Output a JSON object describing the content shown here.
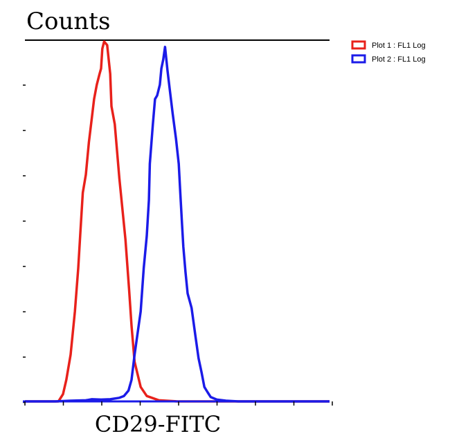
{
  "chart_data": {
    "type": "line",
    "title": "Counts",
    "xlabel": "CD29-FITC",
    "ylabel": "",
    "xlim": [
      0,
      100
    ],
    "ylim": [
      0,
      100
    ],
    "grid": false,
    "legend_position": "top-right",
    "x_tick_count": 9,
    "y_tick_count": 8,
    "series": [
      {
        "name": "Plot 1 : FL1 Log",
        "color": "#e8211b",
        "x": [
          0,
          11,
          12.5,
          13.6,
          15,
          16.4,
          17.5,
          18.2,
          19,
          20,
          21,
          22,
          22.7,
          23.6,
          24.5,
          25,
          25.4,
          26,
          27,
          28,
          28.4,
          29.5,
          31,
          33,
          34.2,
          35,
          36,
          38,
          40,
          44,
          50,
          55,
          60,
          100
        ],
        "y": [
          0,
          0,
          2,
          6,
          13,
          25,
          37,
          47,
          58,
          63,
          72,
          79,
          84,
          88,
          91,
          92.5,
          98,
          100,
          99,
          91,
          82,
          77,
          62,
          45,
          31,
          21,
          11,
          4,
          1.5,
          0.3,
          0,
          0,
          0,
          0
        ]
      },
      {
        "name": "Plot 2 : FL1 Log",
        "color": "#1b1be8",
        "x": [
          0,
          10,
          15,
          20,
          22,
          25,
          28,
          31,
          32.5,
          34,
          35,
          36,
          38,
          39,
          40,
          40.7,
          41,
          42,
          42.7,
          43.4,
          44.3,
          44.8,
          45.4,
          46,
          46.8,
          47.5,
          48.5,
          49.6,
          50.5,
          51,
          51.6,
          52,
          52.7,
          53.4,
          54.7,
          56,
          57,
          58,
          58.9,
          60,
          61,
          63,
          66,
          70,
          80,
          100
        ],
        "y": [
          0,
          0,
          0.2,
          0.3,
          0.6,
          0.5,
          0.6,
          1,
          1.5,
          3,
          6,
          13,
          25,
          37,
          46,
          56,
          66,
          77,
          84,
          85,
          88,
          92.5,
          95,
          98.5,
          92,
          87,
          80,
          73,
          66,
          58,
          49,
          43,
          36,
          30,
          26,
          18,
          12,
          8,
          4,
          2.5,
          1.2,
          0.5,
          0.2,
          0,
          0,
          0
        ]
      }
    ]
  }
}
